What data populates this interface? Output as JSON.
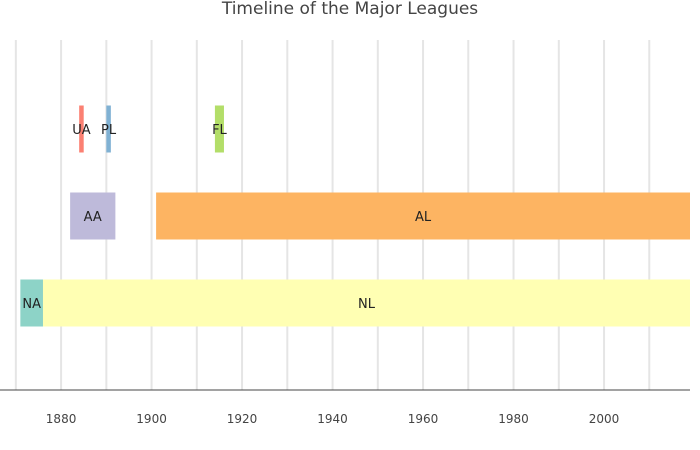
{
  "chart_data": {
    "type": "bar",
    "orientation": "horizontal-timeline",
    "title": "Timeline of the Major Leagues",
    "xlabel": "",
    "ylabel": "",
    "xlim": [
      1866.5,
      2019
    ],
    "grid": true,
    "legend": "none",
    "x_ticks": [
      1880,
      1900,
      1920,
      1940,
      1960,
      1980,
      2000
    ],
    "rows": 3,
    "bars": [
      {
        "label": "NA",
        "start": 1871,
        "end": 1876,
        "row": 0,
        "color": "#8dd3c7"
      },
      {
        "label": "NL",
        "start": 1876,
        "end": 2019,
        "row": 0,
        "color": "#ffffb3"
      },
      {
        "label": "AA",
        "start": 1882,
        "end": 1892,
        "row": 1,
        "color": "#bebada"
      },
      {
        "label": "AL",
        "start": 1901,
        "end": 2019,
        "row": 1,
        "color": "#fdb462"
      },
      {
        "label": "UA",
        "start": 1884,
        "end": 1885,
        "row": 2,
        "color": "#fb8072"
      },
      {
        "label": "PL",
        "start": 1890,
        "end": 1891,
        "row": 2,
        "color": "#80b1d3"
      },
      {
        "label": "FL",
        "start": 1914,
        "end": 1916,
        "row": 2,
        "color": "#b3de69"
      }
    ]
  }
}
